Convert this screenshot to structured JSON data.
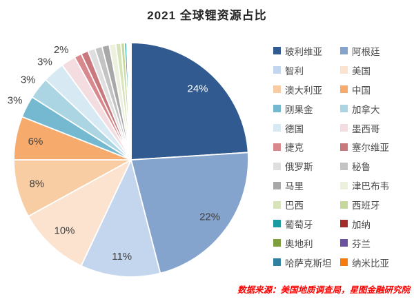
{
  "title": "2021 全球锂资源占比",
  "source_note": "数据来源：美国地质调查局，星图金融研究院",
  "colors": {
    "background": "#ffffff",
    "title_text": "#262626",
    "slice_label_dark": "#3f3f3f",
    "slice_label_light": "#ffffff",
    "legend_text": "#4a4a4a",
    "source_text": "#fe0000",
    "slice_gap": "#ffffff"
  },
  "chart_data": {
    "type": "pie",
    "title": "2021 全球锂资源占比",
    "unit": "%",
    "start_angle_deg": 0,
    "direction": "clockwise",
    "legend_position": "right",
    "labeled_values": [
      "24%",
      "22%",
      "11%",
      "10%",
      "8%",
      "6%",
      "3%",
      "3%",
      "3%",
      "2%"
    ],
    "series": [
      {
        "name": "玻利维亚",
        "value": 24,
        "color": "#315a90",
        "label": {
          "text": "24%",
          "placement": "inside",
          "color": "#ffffff"
        }
      },
      {
        "name": "阿根廷",
        "value": 22,
        "color": "#85a4cd",
        "label": {
          "text": "22%",
          "placement": "inside",
          "color": "#3f3f3f"
        }
      },
      {
        "name": "智利",
        "value": 11,
        "color": "#c4d6ee",
        "label": {
          "text": "11%",
          "placement": "inside",
          "color": "#3f3f3f"
        }
      },
      {
        "name": "美国",
        "value": 10,
        "color": "#fbe3d0",
        "label": {
          "text": "10%",
          "placement": "inside",
          "color": "#3f3f3f"
        }
      },
      {
        "name": "澳大利亚",
        "value": 8,
        "color": "#f9cda3",
        "label": {
          "text": "8%",
          "placement": "inside",
          "color": "#3f3f3f"
        }
      },
      {
        "name": "中国",
        "value": 6,
        "color": "#f6ab6d",
        "label": {
          "text": "6%",
          "placement": "inside",
          "color": "#3f3f3f"
        }
      },
      {
        "name": "刚果金",
        "value": 3,
        "color": "#74b9d0",
        "label": {
          "text": "3%",
          "placement": "outside",
          "color": "#3f3f3f"
        }
      },
      {
        "name": "加拿大",
        "value": 3,
        "color": "#abd5e3",
        "label": {
          "text": "3%",
          "placement": "outside",
          "color": "#3f3f3f"
        }
      },
      {
        "name": "德国",
        "value": 3,
        "color": "#d7eaf3",
        "label": {
          "text": "3%",
          "placement": "outside",
          "color": "#3f3f3f"
        }
      },
      {
        "name": "墨西哥",
        "value": 2,
        "color": "#f4dde0",
        "label": {
          "text": "2%",
          "placement": "outside",
          "color": "#3f3f3f"
        }
      },
      {
        "name": "捷克",
        "value": 1,
        "color": "#d9898d"
      },
      {
        "name": "塞尔维亚",
        "value": 1,
        "color": "#c9797d"
      },
      {
        "name": "俄罗斯",
        "value": 1,
        "color": "#dedede"
      },
      {
        "name": "秘鲁",
        "value": 1,
        "color": "#c3c3c3"
      },
      {
        "name": "马里",
        "value": 1,
        "color": "#a8a8a8"
      },
      {
        "name": "津巴布韦",
        "value": 0.9,
        "color": "#ebf1dc"
      },
      {
        "name": "巴西",
        "value": 0.7,
        "color": "#d7e3b8"
      },
      {
        "name": "西班牙",
        "value": 0.5,
        "color": "#c6d89a"
      },
      {
        "name": "葡萄牙",
        "value": 0.3,
        "color": "#1a9aa1"
      },
      {
        "name": "加纳",
        "value": 0.15,
        "color": "#a32d2b"
      },
      {
        "name": "奥地利",
        "value": 0.15,
        "color": "#7e9d3d"
      },
      {
        "name": "芬兰",
        "value": 0.1,
        "color": "#6b52a0"
      },
      {
        "name": "哈萨克斯坦",
        "value": 0.1,
        "color": "#2f80a0"
      },
      {
        "name": "纳米比亚",
        "value": 0.1,
        "color": "#f67b0c"
      }
    ]
  }
}
